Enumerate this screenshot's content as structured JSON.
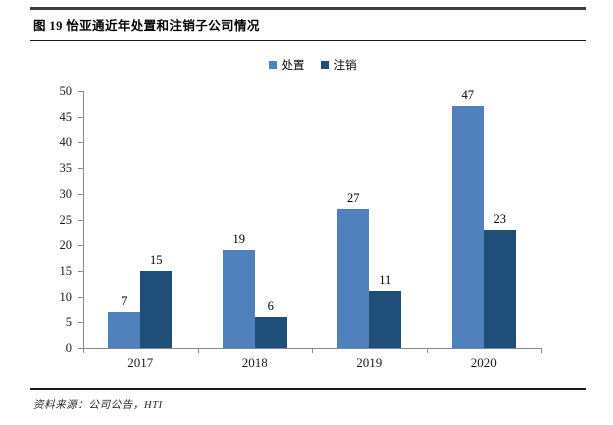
{
  "figure": {
    "title": "图 19 怡亚通近年处置和注销子公司情况",
    "source": "资料来源：公司公告，HTI"
  },
  "chart_data": {
    "type": "bar",
    "title": "图 19 怡亚通近年处置和注销子公司情况",
    "categories": [
      "2017",
      "2018",
      "2019",
      "2020"
    ],
    "series": [
      {
        "name": "处置",
        "color": "#4F81BD",
        "values": [
          7,
          19,
          27,
          47
        ]
      },
      {
        "name": "注销",
        "color": "#1F4E79",
        "values": [
          15,
          6,
          11,
          23
        ]
      }
    ],
    "xlabel": "",
    "ylabel": "",
    "ylim": [
      0,
      50
    ],
    "ytick_step": 5,
    "grid": false,
    "legend_position": "top-center",
    "data_labels": true,
    "axis_color": "#8a8a8a"
  }
}
